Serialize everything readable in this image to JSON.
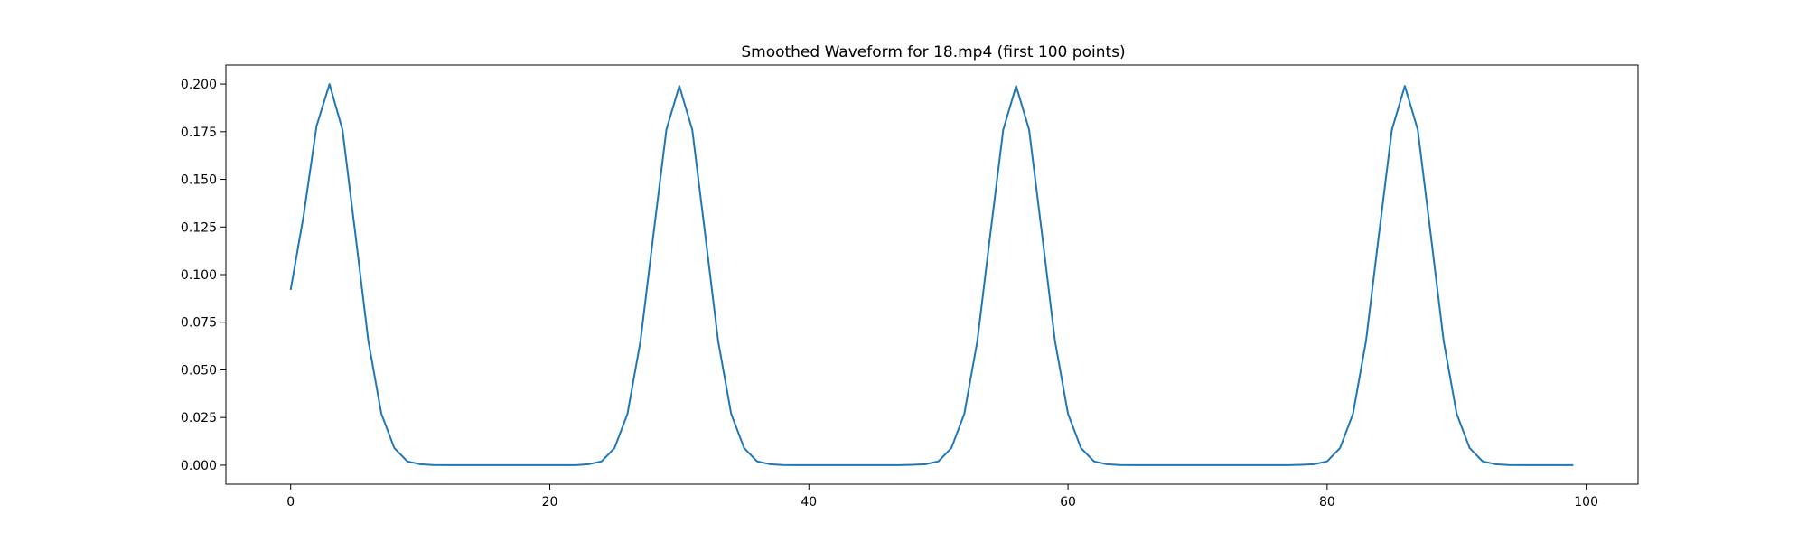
{
  "chart_data": {
    "type": "line",
    "title": "Smoothed Waveform for 18.mp4 (first 100 points)",
    "xlabel": "",
    "ylabel": "",
    "xlim": [
      -5,
      104
    ],
    "ylim": [
      -0.01,
      0.21
    ],
    "xticks": [
      0,
      20,
      40,
      60,
      80,
      100
    ],
    "xtick_labels": [
      "0",
      "20",
      "40",
      "60",
      "80",
      "100"
    ],
    "yticks": [
      0.0,
      0.025,
      0.05,
      0.075,
      0.1,
      0.125,
      0.15,
      0.175,
      0.2
    ],
    "ytick_labels": [
      "0.000",
      "0.025",
      "0.050",
      "0.075",
      "0.100",
      "0.125",
      "0.150",
      "0.175",
      "0.200"
    ],
    "grid": false,
    "series": [
      {
        "color": "#1f77b4",
        "x": [
          0,
          1,
          2,
          3,
          4,
          5,
          6,
          7,
          8,
          9,
          10,
          11,
          12,
          13,
          14,
          15,
          16,
          17,
          18,
          19,
          20,
          21,
          22,
          23,
          24,
          25,
          26,
          27,
          28,
          29,
          30,
          31,
          32,
          33,
          34,
          35,
          36,
          37,
          38,
          39,
          40,
          41,
          42,
          43,
          44,
          45,
          46,
          47,
          48,
          49,
          50,
          51,
          52,
          53,
          54,
          55,
          56,
          57,
          58,
          59,
          60,
          61,
          62,
          63,
          64,
          65,
          66,
          67,
          68,
          69,
          70,
          71,
          72,
          73,
          74,
          75,
          76,
          77,
          78,
          79,
          80,
          81,
          82,
          83,
          84,
          85,
          86,
          87,
          88,
          89,
          90,
          91,
          92,
          93,
          94,
          95,
          96,
          97,
          98,
          99
        ],
        "values": [
          0.092,
          0.131,
          0.178,
          0.2,
          0.176,
          0.121,
          0.065,
          0.027,
          0.009,
          0.002,
          0.0005,
          0.0001,
          0,
          0,
          0,
          0,
          0,
          0,
          0,
          0,
          0,
          0,
          0,
          0.0005,
          0.002,
          0.009,
          0.027,
          0.065,
          0.121,
          0.176,
          0.199,
          0.176,
          0.121,
          0.065,
          0.027,
          0.009,
          0.002,
          0.0005,
          0.0001,
          0,
          0,
          0,
          0,
          0,
          0,
          0,
          0,
          0,
          0.0002,
          0.0005,
          0.002,
          0.009,
          0.027,
          0.065,
          0.121,
          0.176,
          0.199,
          0.176,
          0.121,
          0.065,
          0.027,
          0.009,
          0.002,
          0.0005,
          0.0001,
          0,
          0,
          0,
          0,
          0,
          0,
          0,
          0,
          0,
          0,
          0,
          0,
          0,
          0.0002,
          0.0005,
          0.002,
          0.009,
          0.027,
          0.065,
          0.121,
          0.176,
          0.199,
          0.176,
          0.121,
          0.065,
          0.027,
          0.009,
          0.002,
          0.0005,
          0.0001,
          0,
          0,
          0,
          0,
          0
        ]
      }
    ]
  }
}
